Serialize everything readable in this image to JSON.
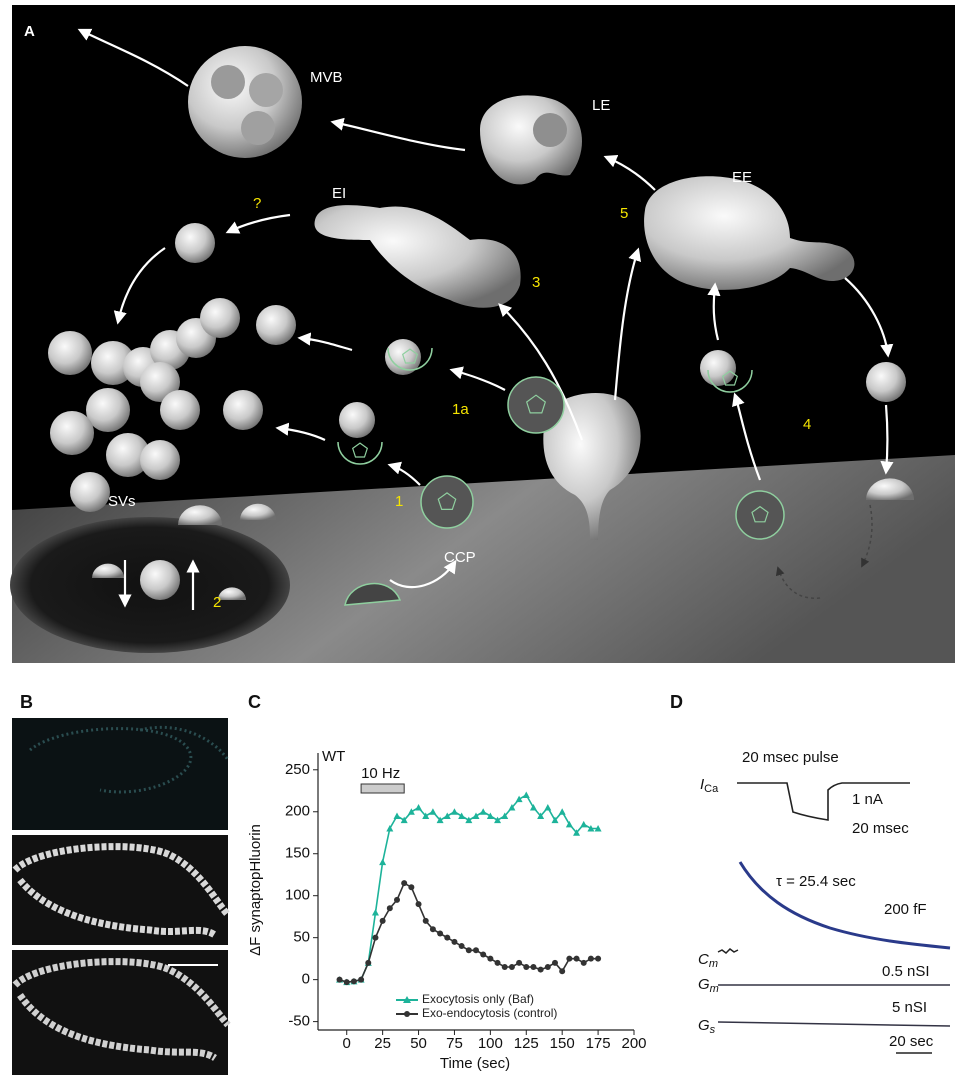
{
  "panel_a": {
    "letter": "A",
    "labels": {
      "mvb": "MVB",
      "le": "LE",
      "ee": "EE",
      "ei": "EI",
      "question": "?",
      "step5": "5",
      "step3": "3",
      "step1a": "1a",
      "step1": "1",
      "step2": "2",
      "step4": "4",
      "svs": "SVs",
      "ccp": "CCP"
    }
  },
  "panel_b": {
    "letter": "B"
  },
  "chart_data": {
    "type": "line",
    "letter": "C",
    "annotation": "WT",
    "stimulus": {
      "label": "10 Hz",
      "start": 10,
      "end": 40
    },
    "xlabel": "Time (sec)",
    "ylabel": "ΔF synaptopHluorin",
    "legend": "bottom",
    "x": [
      -5,
      0,
      5,
      10,
      15,
      20,
      25,
      30,
      35,
      40,
      45,
      50,
      55,
      60,
      65,
      70,
      75,
      80,
      85,
      90,
      95,
      100,
      105,
      110,
      115,
      120,
      125,
      130,
      135,
      140,
      145,
      150,
      155,
      160,
      165,
      170,
      175
    ],
    "series": [
      {
        "name": "Exocytosis only (Baf)",
        "color": "#1db39a",
        "marker": "triangle",
        "values": [
          0,
          -3,
          -2,
          0,
          20,
          80,
          140,
          180,
          195,
          190,
          200,
          205,
          195,
          200,
          190,
          195,
          200,
          195,
          190,
          195,
          200,
          195,
          190,
          195,
          205,
          215,
          220,
          205,
          195,
          205,
          190,
          200,
          185,
          175,
          185,
          180,
          180
        ]
      },
      {
        "name": "Exo-endocytosis (control)",
        "color": "#333333",
        "marker": "circle",
        "values": [
          0,
          -3,
          -2,
          0,
          20,
          50,
          70,
          85,
          95,
          115,
          110,
          90,
          70,
          60,
          55,
          50,
          45,
          40,
          35,
          35,
          30,
          25,
          20,
          15,
          15,
          20,
          15,
          15,
          12,
          15,
          20,
          10,
          25,
          25,
          20,
          25,
          25
        ]
      }
    ],
    "xlim": [
      -20,
      200
    ],
    "ylim": [
      -60,
      270
    ],
    "xticks": [
      0,
      25,
      50,
      75,
      100,
      125,
      150,
      175,
      200
    ],
    "yticks": [
      -50,
      0,
      50,
      100,
      150,
      200,
      250
    ]
  },
  "panel_d": {
    "letter": "D",
    "pulse": "20 msec pulse",
    "ica": {
      "symbol": "I",
      "sub": "Ca"
    },
    "current_scale": "1 nA",
    "time_scale": "20 msec",
    "tau": "τ = 25.4 sec",
    "cap_scale": "200 fF",
    "cm": {
      "symbol": "C",
      "sub": "m"
    },
    "gm": {
      "symbol": "G",
      "sub": "m"
    },
    "gs": {
      "symbol": "G",
      "sub": "s"
    },
    "gm_scale": "0.5 nSI",
    "gs_scale": "5 nSI",
    "slow_scale": "20 sec"
  }
}
